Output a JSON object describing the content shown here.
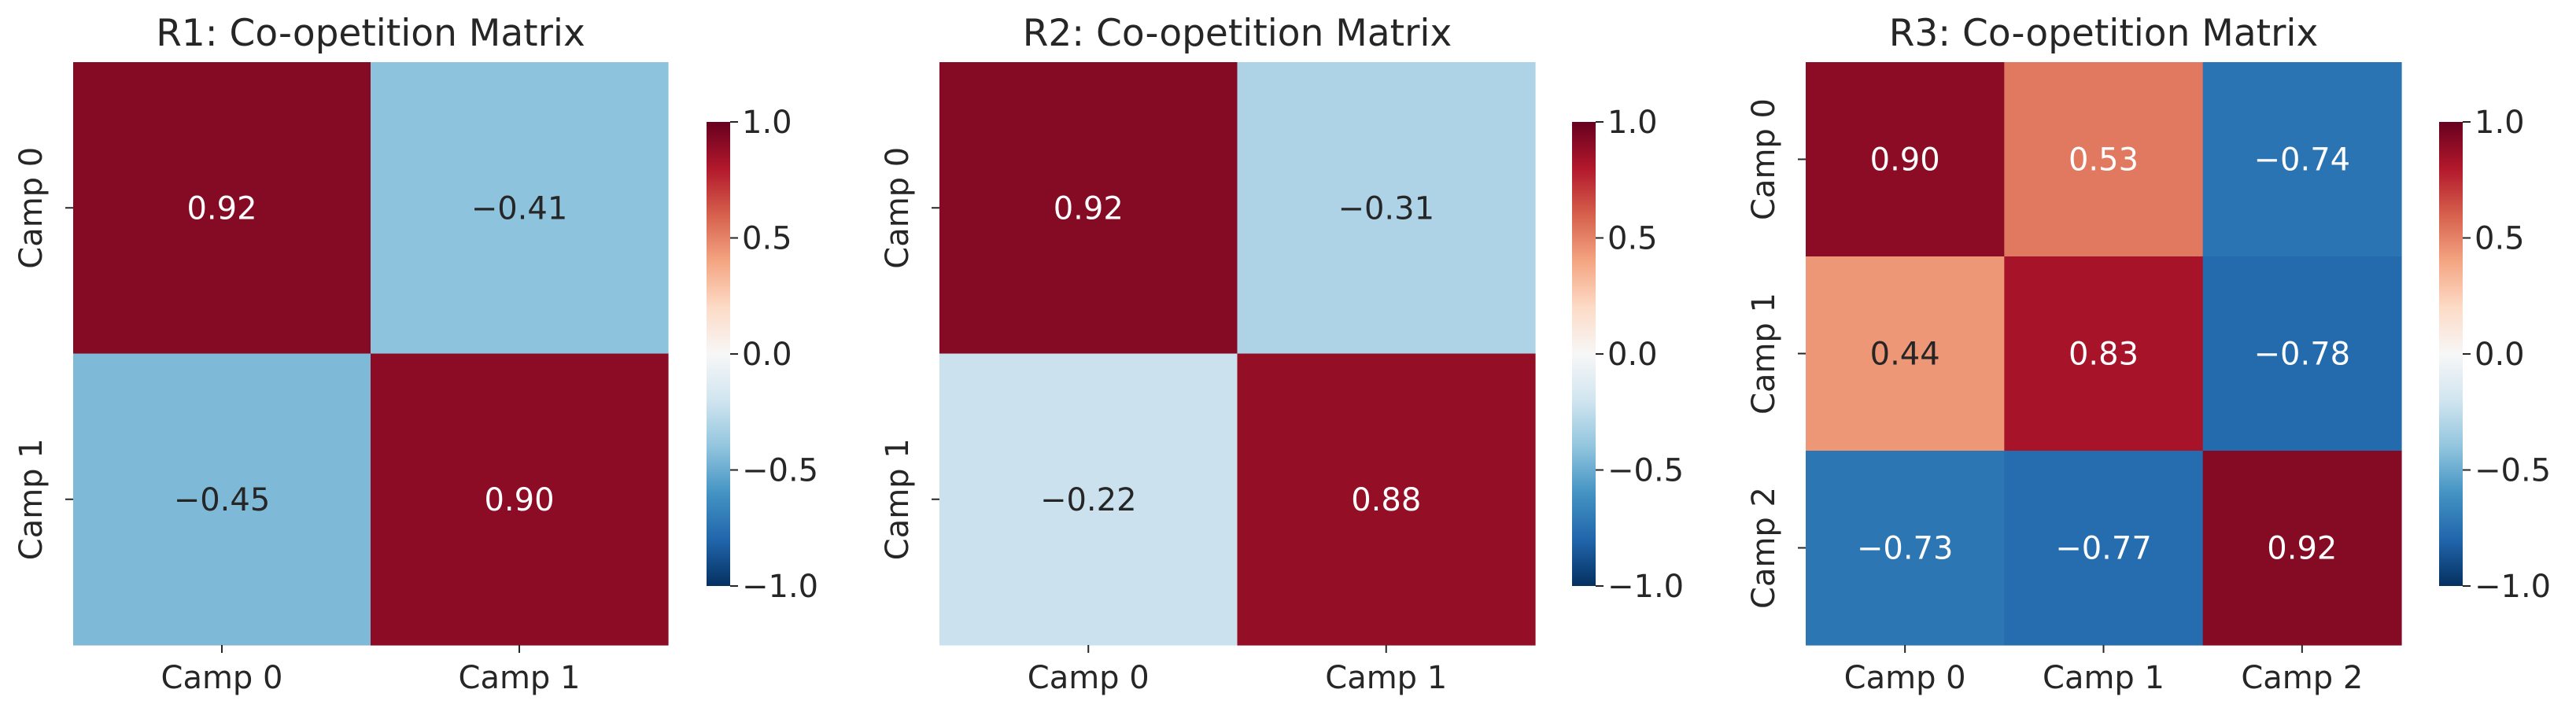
{
  "colors": {
    "scale": [
      "#053061",
      "#2166ac",
      "#4393c3",
      "#92c5de",
      "#d1e5f0",
      "#f7f7f7",
      "#fddbc7",
      "#f4a582",
      "#d6604d",
      "#b2182b",
      "#67001f"
    ],
    "text_dark": "#262626",
    "text_light": "#ffffff",
    "axis": "#262626"
  },
  "chart_data": [
    {
      "type": "heatmap",
      "title": "R1: Co-opetition Matrix",
      "x_categories": [
        "Camp 0",
        "Camp 1"
      ],
      "y_categories": [
        "Camp 0",
        "Camp 1"
      ],
      "values": [
        [
          0.92,
          -0.41
        ],
        [
          -0.45,
          0.9
        ]
      ],
      "value_labels": [
        [
          "0.92",
          "−0.41"
        ],
        [
          "−0.45",
          "0.90"
        ]
      ],
      "colorbar": {
        "vmin": -1.0,
        "vmax": 1.0,
        "ticks": [
          "1.0",
          "0.5",
          "0.0",
          "−0.5",
          "−1.0"
        ],
        "tick_values": [
          1.0,
          0.5,
          0.0,
          -0.5,
          -1.0
        ]
      }
    },
    {
      "type": "heatmap",
      "title": "R2: Co-opetition Matrix",
      "x_categories": [
        "Camp 0",
        "Camp 1"
      ],
      "y_categories": [
        "Camp 0",
        "Camp 1"
      ],
      "values": [
        [
          0.92,
          -0.31
        ],
        [
          -0.22,
          0.88
        ]
      ],
      "value_labels": [
        [
          "0.92",
          "−0.31"
        ],
        [
          "−0.22",
          "0.88"
        ]
      ],
      "colorbar": {
        "vmin": -1.0,
        "vmax": 1.0,
        "ticks": [
          "1.0",
          "0.5",
          "0.0",
          "−0.5",
          "−1.0"
        ],
        "tick_values": [
          1.0,
          0.5,
          0.0,
          -0.5,
          -1.0
        ]
      }
    },
    {
      "type": "heatmap",
      "title": "R3: Co-opetition Matrix",
      "x_categories": [
        "Camp 0",
        "Camp 1",
        "Camp 2"
      ],
      "y_categories": [
        "Camp 0",
        "Camp 1",
        "Camp 2"
      ],
      "values": [
        [
          0.9,
          0.53,
          -0.74
        ],
        [
          0.44,
          0.83,
          -0.78
        ],
        [
          -0.73,
          -0.77,
          0.92
        ]
      ],
      "value_labels": [
        [
          "0.90",
          "0.53",
          "−0.74"
        ],
        [
          "0.44",
          "0.83",
          "−0.78"
        ],
        [
          "−0.73",
          "−0.77",
          "0.92"
        ]
      ],
      "colorbar": {
        "vmin": -1.0,
        "vmax": 1.0,
        "ticks": [
          "1.0",
          "0.5",
          "0.0",
          "−0.5",
          "−1.0"
        ],
        "tick_values": [
          1.0,
          0.5,
          0.0,
          -0.5,
          -1.0
        ]
      }
    }
  ]
}
